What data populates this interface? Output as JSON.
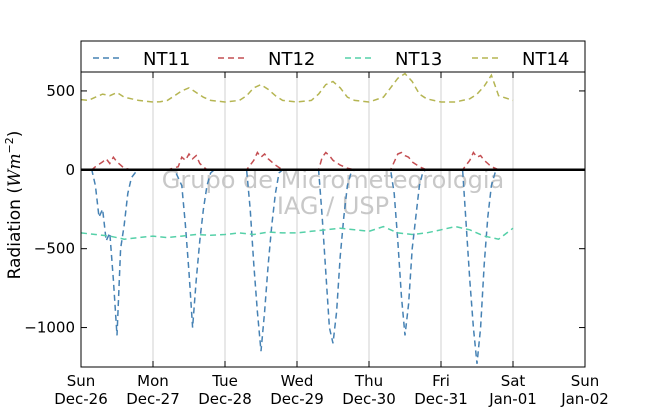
{
  "chart_data": {
    "type": "line",
    "ylabel": "Radiation (Wm^-2)",
    "ylabel_plain": "Radiation (",
    "ylabel_units": "Wm",
    "ylabel_exp": "−2",
    "ylabel_close": ")",
    "ylim": [
      -1250,
      620
    ],
    "yticks": [
      500,
      0,
      -500,
      -1000
    ],
    "ytick_labels": [
      "500",
      "0",
      "−500",
      "−1000"
    ],
    "xlim": [
      0,
      7
    ],
    "xticks": [
      0,
      1,
      2,
      3,
      4,
      5,
      6,
      7
    ],
    "xtick_labels": [
      [
        "Sun",
        "Dec-26"
      ],
      [
        "Mon",
        "Dec-27"
      ],
      [
        "Tue",
        "Dec-28"
      ],
      [
        "Wed",
        "Dec-29"
      ],
      [
        "Thu",
        "Dec-30"
      ],
      [
        "Fri",
        "Dec-31"
      ],
      [
        "Sat",
        "Jan-01"
      ],
      [
        "Sun",
        "Jan-02"
      ]
    ],
    "grid": "vertical",
    "legend_position": "top",
    "watermark": [
      "Grupo de Micrometeorologia",
      "IAG / USP"
    ],
    "series": [
      {
        "name": "NT11",
        "color": "#4682b4",
        "x": [
          0.0,
          0.15,
          0.2,
          0.25,
          0.3,
          0.35,
          0.4,
          0.45,
          0.5,
          0.55,
          0.6,
          0.65,
          0.7,
          0.75,
          0.8,
          0.95,
          1.0,
          1.1,
          1.2,
          1.3,
          1.4,
          1.45,
          1.5,
          1.55,
          1.6,
          1.65,
          1.7,
          1.75,
          1.8,
          1.85,
          2.0,
          2.1,
          2.2,
          2.3,
          2.35,
          2.4,
          2.45,
          2.5,
          2.55,
          2.6,
          2.65,
          2.7,
          2.75,
          2.8,
          3.0,
          3.1,
          3.2,
          3.3,
          3.35,
          3.4,
          3.45,
          3.5,
          3.55,
          3.6,
          3.65,
          3.7,
          3.75,
          3.8,
          4.0,
          4.1,
          4.2,
          4.3,
          4.35,
          4.4,
          4.45,
          4.5,
          4.55,
          4.6,
          4.65,
          4.7,
          4.75,
          4.8,
          5.0,
          5.1,
          5.2,
          5.3,
          5.35,
          5.4,
          5.45,
          5.5,
          5.55,
          5.6,
          5.65,
          5.7,
          5.75,
          5.8,
          6.0
        ],
        "y": [
          0,
          0,
          -100,
          -300,
          -250,
          -450,
          -400,
          -700,
          -1050,
          -500,
          -350,
          -150,
          -50,
          -20,
          0,
          0,
          0,
          0,
          0,
          0,
          -100,
          -350,
          -650,
          -1000,
          -700,
          -450,
          -250,
          -100,
          -20,
          0,
          0,
          0,
          0,
          0,
          -250,
          -600,
          -900,
          -1150,
          -900,
          -600,
          -350,
          -150,
          -20,
          0,
          0,
          0,
          0,
          0,
          -300,
          -650,
          -1000,
          -1100,
          -900,
          -550,
          -300,
          -100,
          -20,
          0,
          0,
          0,
          0,
          0,
          -150,
          -450,
          -800,
          -1050,
          -850,
          -500,
          -300,
          -100,
          -10,
          0,
          0,
          0,
          0,
          0,
          -350,
          -700,
          -1000,
          -1230,
          -1000,
          -600,
          -300,
          -100,
          -20,
          0,
          0
        ]
      },
      {
        "name": "NT12",
        "color": "#c44e52",
        "x": [
          0.0,
          0.15,
          0.2,
          0.3,
          0.35,
          0.4,
          0.45,
          0.5,
          0.55,
          0.6,
          0.7,
          1.0,
          1.2,
          1.35,
          1.4,
          1.45,
          1.5,
          1.55,
          1.6,
          1.65,
          1.75,
          2.0,
          2.3,
          2.4,
          2.45,
          2.5,
          2.55,
          2.6,
          2.7,
          2.8,
          3.0,
          3.3,
          3.35,
          3.4,
          3.45,
          3.5,
          3.6,
          3.7,
          3.8,
          4.0,
          4.3,
          4.4,
          4.45,
          4.5,
          4.55,
          4.6,
          4.7,
          4.8,
          5.0,
          5.3,
          5.4,
          5.45,
          5.5,
          5.55,
          5.6,
          5.65,
          5.7,
          5.8,
          6.0
        ],
        "y": [
          0,
          0,
          20,
          50,
          70,
          40,
          80,
          50,
          30,
          10,
          0,
          0,
          0,
          20,
          80,
          60,
          100,
          70,
          90,
          40,
          0,
          0,
          0,
          60,
          110,
          80,
          100,
          70,
          30,
          0,
          0,
          0,
          80,
          110,
          90,
          60,
          30,
          10,
          0,
          0,
          0,
          100,
          110,
          90,
          80,
          50,
          20,
          0,
          0,
          0,
          60,
          110,
          80,
          90,
          60,
          40,
          20,
          0,
          0
        ]
      },
      {
        "name": "NT13",
        "color": "#55d0a8",
        "x": [
          0.0,
          0.2,
          0.4,
          0.6,
          0.8,
          1.0,
          1.2,
          1.4,
          1.6,
          1.8,
          2.0,
          2.2,
          2.4,
          2.6,
          2.8,
          3.0,
          3.2,
          3.4,
          3.6,
          3.8,
          4.0,
          4.2,
          4.4,
          4.6,
          4.8,
          5.0,
          5.2,
          5.4,
          5.6,
          5.8,
          6.0
        ],
        "y": [
          -400,
          -410,
          -420,
          -440,
          -430,
          -420,
          -430,
          -420,
          -410,
          -415,
          -410,
          -400,
          -410,
          -395,
          -400,
          -400,
          -390,
          -380,
          -370,
          -380,
          -390,
          -360,
          -400,
          -410,
          -400,
          -380,
          -360,
          -380,
          -420,
          -440,
          -370
        ]
      },
      {
        "name": "NT14",
        "color": "#b5b552",
        "x": [
          0.0,
          0.1,
          0.2,
          0.3,
          0.4,
          0.5,
          0.6,
          0.7,
          0.8,
          0.9,
          1.0,
          1.1,
          1.2,
          1.3,
          1.4,
          1.5,
          1.6,
          1.7,
          1.8,
          2.0,
          2.2,
          2.3,
          2.4,
          2.5,
          2.6,
          2.7,
          2.8,
          3.0,
          3.2,
          3.3,
          3.4,
          3.5,
          3.6,
          3.7,
          3.8,
          4.0,
          4.2,
          4.3,
          4.4,
          4.5,
          4.6,
          4.7,
          4.8,
          5.0,
          5.2,
          5.3,
          5.4,
          5.5,
          5.6,
          5.7,
          5.8,
          6.0
        ],
        "y": [
          445,
          440,
          460,
          480,
          470,
          490,
          460,
          450,
          440,
          435,
          430,
          432,
          440,
          470,
          500,
          520,
          490,
          460,
          440,
          430,
          440,
          470,
          520,
          540,
          510,
          470,
          440,
          430,
          440,
          480,
          540,
          560,
          520,
          460,
          440,
          430,
          460,
          520,
          580,
          610,
          560,
          480,
          450,
          430,
          430,
          440,
          450,
          480,
          530,
          600,
          470,
          440
        ]
      }
    ]
  }
}
